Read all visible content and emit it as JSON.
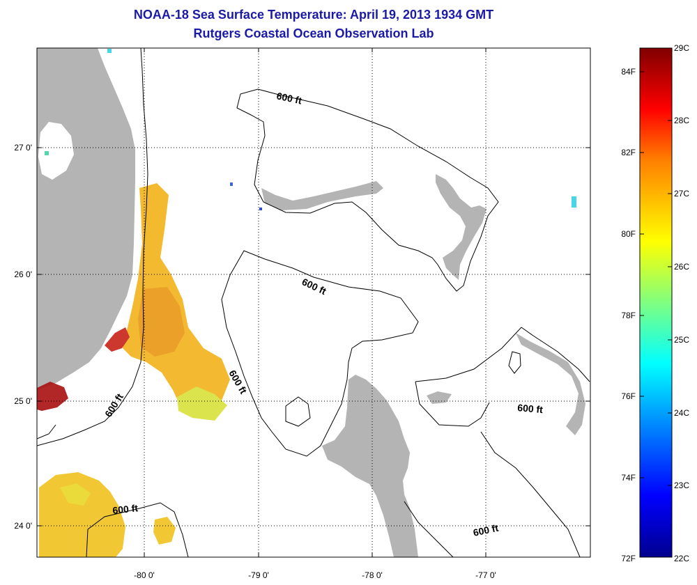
{
  "header": {
    "title": "NOAA-18 Sea Surface Temperature:  April 19, 2013 1934 GMT",
    "subtitle": "Rutgers Coastal Ocean Observation Lab"
  },
  "map": {
    "lat_labels": [
      "27 0'",
      "26 0'",
      "25 0'",
      "24 0'"
    ],
    "lon_labels": [
      "-80 0'",
      "-79 0'",
      "-78 0'",
      "-77 0'"
    ],
    "contour_label": "600 ft",
    "land_color": "#b4b4b4",
    "ocean_color": "#ffffff"
  },
  "colorbar": {
    "fahrenheit_labels": [
      "84F",
      "82F",
      "80F",
      "78F",
      "76F",
      "74F",
      "72F"
    ],
    "celsius_labels": [
      "29C",
      "28C",
      "27C",
      "26C",
      "25C",
      "24C",
      "23C",
      "22C"
    ],
    "colors": [
      "#00008f",
      "#0000ff",
      "#00ffff",
      "#ffff00",
      "#ff7f00",
      "#ff0000",
      "#800000"
    ]
  }
}
